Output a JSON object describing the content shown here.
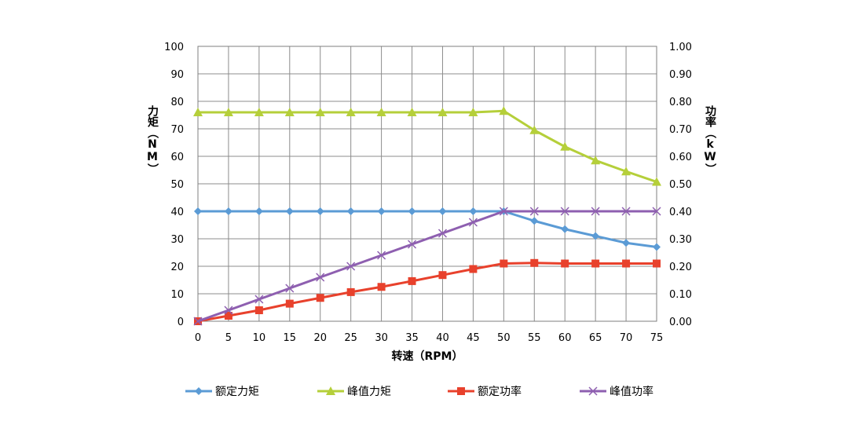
{
  "chart_data": {
    "type": "line",
    "x": [
      0,
      5,
      10,
      15,
      20,
      25,
      30,
      35,
      40,
      45,
      50,
      55,
      60,
      65,
      70,
      75
    ],
    "xlabel": "转速（RPM）",
    "ylabel_left": "力矩（NM）",
    "ylabel_right": "功率（kW）",
    "ylim_left": [
      0,
      100
    ],
    "ylim_right": [
      0,
      1.0
    ],
    "yticks_left": [
      "0",
      "10",
      "20",
      "30",
      "40",
      "50",
      "60",
      "70",
      "80",
      "90",
      "100"
    ],
    "yticks_right": [
      "0.00",
      "0.10",
      "0.20",
      "0.30",
      "0.40",
      "0.50",
      "0.60",
      "0.70",
      "0.80",
      "0.90",
      "1.00"
    ],
    "grid": true,
    "legend_position": "bottom",
    "series": [
      {
        "name": "额定力矩",
        "axis": "left",
        "color": "#5B9BD5",
        "marker": "diamond",
        "values": [
          40,
          40,
          40,
          40,
          40,
          40,
          40,
          40,
          40,
          40,
          40,
          36.5,
          33.5,
          31,
          28.5,
          27
        ]
      },
      {
        "name": "峰值力矩",
        "axis": "left",
        "color": "#B5CF3A",
        "marker": "triangle",
        "values": [
          76,
          76,
          76,
          76,
          76,
          76,
          76,
          76,
          76,
          76,
          76.5,
          69.5,
          63.5,
          58.5,
          54.5,
          50.7
        ]
      },
      {
        "name": "额定功率",
        "axis": "right",
        "color": "#E8412C",
        "marker": "square",
        "values": [
          0,
          0.02,
          0.04,
          0.064,
          0.085,
          0.106,
          0.125,
          0.146,
          0.168,
          0.19,
          0.21,
          0.212,
          0.21,
          0.21,
          0.21,
          0.21
        ]
      },
      {
        "name": "峰值功率",
        "axis": "right",
        "color": "#8E5FB0",
        "marker": "x",
        "values": [
          0,
          0.04,
          0.08,
          0.12,
          0.16,
          0.2,
          0.24,
          0.28,
          0.32,
          0.36,
          0.4,
          0.4,
          0.4,
          0.4,
          0.4,
          0.4
        ]
      }
    ]
  }
}
